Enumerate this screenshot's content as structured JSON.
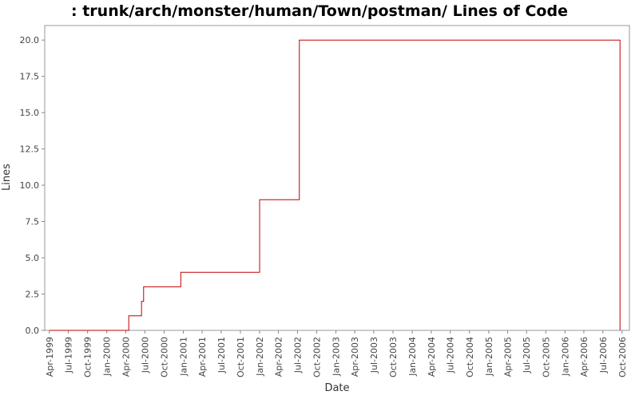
{
  "chart_data": {
    "type": "line",
    "title": ": trunk/arch/monster/human/Town/postman/ Lines of Code",
    "xlabel": "Date",
    "ylabel": "Lines",
    "ylim": [
      0,
      21
    ],
    "y_ticks": [
      "0.0",
      "2.5",
      "5.0",
      "7.5",
      "10.0",
      "12.5",
      "15.0",
      "17.5",
      "20.0"
    ],
    "x_ticks": [
      "Apr-1999",
      "Jul-1999",
      "Oct-1999",
      "Jan-2000",
      "Apr-2000",
      "Jul-2000",
      "Oct-2000",
      "Jan-2001",
      "Apr-2001",
      "Jul-2001",
      "Oct-2001",
      "Jan-2002",
      "Apr-2002",
      "Jul-2002",
      "Oct-2002",
      "Jan-2003",
      "Apr-2003",
      "Jul-2003",
      "Oct-2003",
      "Jan-2004",
      "Apr-2004",
      "Jul-2004",
      "Oct-2004",
      "Jan-2005",
      "Apr-2005",
      "Jul-2005",
      "Oct-2005",
      "Jan-2006",
      "Apr-2006",
      "Jul-2006",
      "Oct-2006"
    ],
    "grid": false,
    "series": [
      {
        "color": "#c00000",
        "step": true,
        "x": [
          "1999-04-01",
          "2000-04-15",
          "2000-06-15",
          "2000-06-25",
          "2000-12-20",
          "2002-01-01",
          "2002-07-10",
          "2006-09-20",
          "2006-09-21"
        ],
        "values": [
          0,
          1,
          2,
          3,
          4,
          9,
          20,
          20,
          0
        ]
      }
    ]
  }
}
